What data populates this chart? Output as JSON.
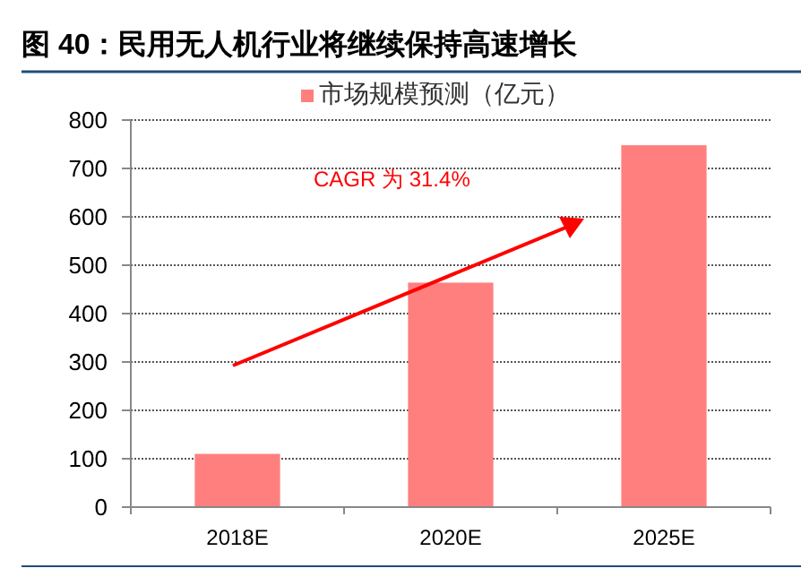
{
  "chart_data": {
    "type": "bar",
    "title": "图 40：民用无人机行业将继续保持高速增长",
    "categories": [
      "2018E",
      "2020E",
      "2025E"
    ],
    "series": [
      {
        "name": "市场规模预测（亿元）",
        "color": "#ff7f7f",
        "values": [
          110,
          464,
          748
        ]
      }
    ],
    "ylim": [
      0,
      800
    ],
    "yticks": [
      0,
      100,
      200,
      300,
      400,
      500,
      600,
      700,
      800
    ],
    "grid": "y",
    "legend": "top",
    "annotations": [
      "CAGR 为 31.4%"
    ]
  }
}
